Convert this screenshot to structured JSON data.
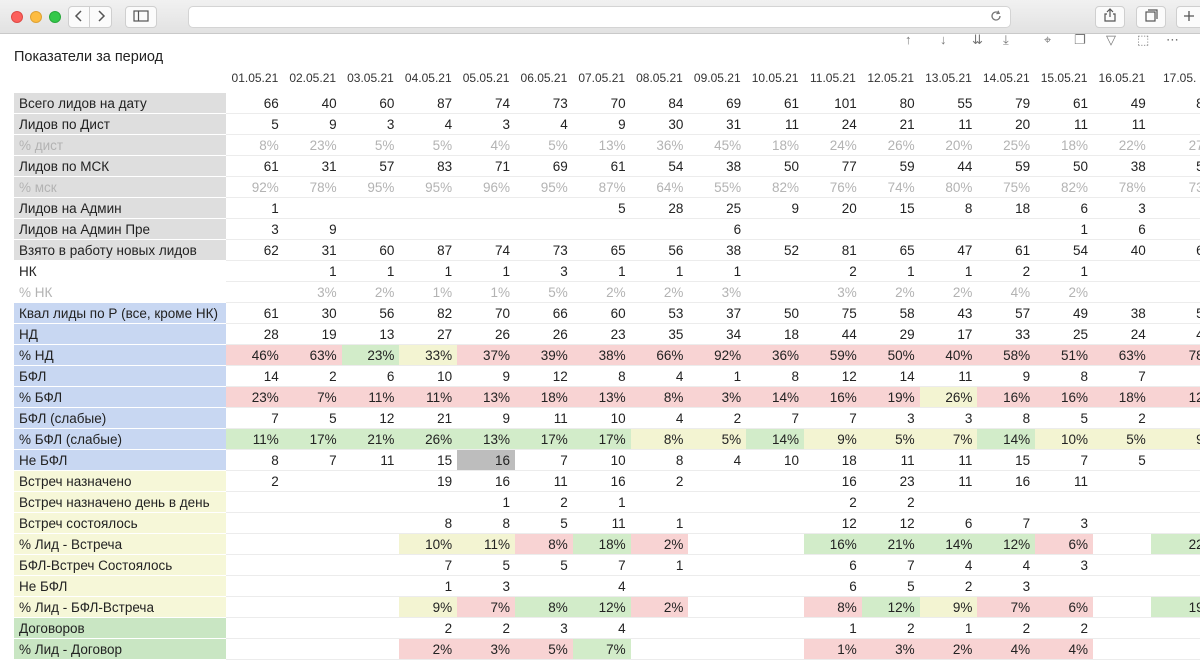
{
  "colors": {
    "label_gray": "#dedede",
    "label_blue": "#c8d7f2",
    "label_yellow": "#f6f7d8",
    "label_green": "#c9e6c3",
    "cell_red": "#f8d3d3",
    "cell_green": "#d2ecc9",
    "cell_yellow": "#f3f4d2",
    "cell_selected": "#bdbdbd"
  },
  "browser": {
    "back_icon": "chevron-left-icon",
    "forward_icon": "chevron-right-icon",
    "sidebar_icon": "sidebar-icon",
    "reload_icon": "reload-icon",
    "share_icon": "share-icon",
    "tabs_icon": "tabs-icon",
    "new_tab_icon": "plus-icon"
  },
  "report": {
    "title": "Показатели за период",
    "visual_tools": [
      "arrow-up-icon",
      "arrow-down-icon",
      "double-arrow-down-icon",
      "expand-icon",
      "pin-icon",
      "copy-icon",
      "filter-icon",
      "export-icon",
      "more-icon"
    ],
    "dates": [
      "01.05.21",
      "02.05.21",
      "03.05.21",
      "04.05.21",
      "05.05.21",
      "06.05.21",
      "07.05.21",
      "08.05.21",
      "09.05.21",
      "10.05.21",
      "11.05.21",
      "12.05.21",
      "13.05.21",
      "14.05.21",
      "15.05.21",
      "16.05.21",
      "17.05."
    ],
    "rows": [
      {
        "label": "Всего лидов на дату",
        "lc": "g",
        "values": [
          "66",
          "40",
          "60",
          "87",
          "74",
          "73",
          "70",
          "84",
          "69",
          "61",
          "101",
          "80",
          "55",
          "79",
          "61",
          "49",
          "8"
        ]
      },
      {
        "label": "Лидов по Дист",
        "lc": "g",
        "values": [
          "5",
          "9",
          "3",
          "4",
          "3",
          "4",
          "9",
          "30",
          "31",
          "11",
          "24",
          "21",
          "11",
          "20",
          "11",
          "11",
          ""
        ]
      },
      {
        "label": "% дист",
        "lc": "g",
        "light": true,
        "values": [
          "8%",
          "23%",
          "5%",
          "5%",
          "4%",
          "5%",
          "13%",
          "36%",
          "45%",
          "18%",
          "24%",
          "26%",
          "20%",
          "25%",
          "18%",
          "22%",
          "27"
        ]
      },
      {
        "label": "Лидов по МСК",
        "lc": "g",
        "values": [
          "61",
          "31",
          "57",
          "83",
          "71",
          "69",
          "61",
          "54",
          "38",
          "50",
          "77",
          "59",
          "44",
          "59",
          "50",
          "38",
          "5"
        ]
      },
      {
        "label": "% мск",
        "lc": "g",
        "light": true,
        "values": [
          "92%",
          "78%",
          "95%",
          "95%",
          "96%",
          "95%",
          "87%",
          "64%",
          "55%",
          "82%",
          "76%",
          "74%",
          "80%",
          "75%",
          "82%",
          "78%",
          "73"
        ]
      },
      {
        "label": "Лидов на Админ",
        "lc": "g",
        "values": [
          "1",
          "",
          "",
          "",
          "",
          "",
          "5",
          "28",
          "25",
          "9",
          "20",
          "15",
          "8",
          "18",
          "6",
          "3",
          ""
        ]
      },
      {
        "label": "Лидов на Админ Пре",
        "lc": "g",
        "values": [
          "3",
          "9",
          "",
          "",
          "",
          "",
          "",
          "",
          "6",
          "",
          "",
          "",
          "",
          "",
          "1",
          "6",
          ""
        ]
      },
      {
        "label": "Взято в работу новых лидов",
        "lc": "g",
        "values": [
          "62",
          "31",
          "60",
          "87",
          "74",
          "73",
          "65",
          "56",
          "38",
          "52",
          "81",
          "65",
          "47",
          "61",
          "54",
          "40",
          "6"
        ]
      },
      {
        "label": "НК",
        "lc": "w",
        "values": [
          "",
          "1",
          "1",
          "1",
          "1",
          "3",
          "1",
          "1",
          "1",
          "",
          "2",
          "1",
          "1",
          "2",
          "1",
          "",
          ""
        ]
      },
      {
        "label": "% НК",
        "lc": "w",
        "light": true,
        "values": [
          "",
          "3%",
          "2%",
          "1%",
          "1%",
          "5%",
          "2%",
          "2%",
          "3%",
          "",
          "3%",
          "2%",
          "2%",
          "4%",
          "2%",
          "",
          ""
        ]
      },
      {
        "label": "Квал лиды по Р (все, кроме НК)",
        "lc": "b",
        "values": [
          "61",
          "30",
          "56",
          "82",
          "70",
          "66",
          "60",
          "53",
          "37",
          "50",
          "75",
          "58",
          "43",
          "57",
          "49",
          "38",
          "5"
        ]
      },
      {
        "label": "НД",
        "lc": "b",
        "values": [
          "28",
          "19",
          "13",
          "27",
          "26",
          "26",
          "23",
          "35",
          "34",
          "18",
          "44",
          "29",
          "17",
          "33",
          "25",
          "24",
          "4"
        ]
      },
      {
        "label": "% НД",
        "lc": "b",
        "values": [
          "46%",
          "63%",
          "23%",
          "33%",
          "37%",
          "39%",
          "38%",
          "66%",
          "92%",
          "36%",
          "59%",
          "50%",
          "40%",
          "58%",
          "51%",
          "63%",
          "78"
        ],
        "bg": [
          "r",
          "r",
          "g",
          "y",
          "r",
          "r",
          "r",
          "r",
          "r",
          "r",
          "r",
          "r",
          "r",
          "r",
          "r",
          "r",
          "r"
        ]
      },
      {
        "label": "БФЛ",
        "lc": "b",
        "values": [
          "14",
          "2",
          "6",
          "10",
          "9",
          "12",
          "8",
          "4",
          "1",
          "8",
          "12",
          "14",
          "11",
          "9",
          "8",
          "7",
          ""
        ]
      },
      {
        "label": "% БФЛ",
        "lc": "b",
        "values": [
          "23%",
          "7%",
          "11%",
          "11%",
          "13%",
          "18%",
          "13%",
          "8%",
          "3%",
          "14%",
          "16%",
          "19%",
          "26%",
          "16%",
          "16%",
          "18%",
          "12"
        ],
        "bg": [
          "r",
          "r",
          "r",
          "r",
          "r",
          "r",
          "r",
          "r",
          "r",
          "r",
          "r",
          "r",
          "y",
          "r",
          "r",
          "r",
          "r"
        ]
      },
      {
        "label": "БФЛ (слабые)",
        "lc": "b",
        "values": [
          "7",
          "5",
          "12",
          "21",
          "9",
          "11",
          "10",
          "4",
          "2",
          "7",
          "7",
          "3",
          "3",
          "8",
          "5",
          "2",
          ""
        ]
      },
      {
        "label": "% БФЛ (слабые)",
        "lc": "b",
        "values": [
          "11%",
          "17%",
          "21%",
          "26%",
          "13%",
          "17%",
          "17%",
          "8%",
          "5%",
          "14%",
          "9%",
          "5%",
          "7%",
          "14%",
          "10%",
          "5%",
          "9"
        ],
        "bg": [
          "g",
          "g",
          "g",
          "g",
          "g",
          "g",
          "g",
          "y",
          "y",
          "g",
          "y",
          "y",
          "y",
          "g",
          "y",
          "y",
          "y"
        ]
      },
      {
        "label": "Не БФЛ",
        "lc": "b",
        "values": [
          "8",
          "7",
          "11",
          "15",
          "16",
          "7",
          "10",
          "8",
          "4",
          "10",
          "18",
          "11",
          "11",
          "15",
          "7",
          "5",
          ""
        ],
        "bg": [
          "",
          "",
          "",
          "",
          "s",
          "",
          "",
          "",
          "",
          "",
          "",
          "",
          "",
          "",
          "",
          "",
          ""
        ]
      },
      {
        "label": "Встреч назначено",
        "lc": "y",
        "values": [
          "2",
          "",
          "",
          "19",
          "16",
          "11",
          "16",
          "2",
          "",
          "",
          "16",
          "23",
          "11",
          "16",
          "11",
          "",
          ""
        ]
      },
      {
        "label": "Встреч назначено день в день",
        "lc": "y",
        "values": [
          "",
          "",
          "",
          "",
          "1",
          "2",
          "1",
          "",
          "",
          "",
          "2",
          "2",
          "",
          "",
          "",
          "",
          ""
        ]
      },
      {
        "label": "Встреч состоялось",
        "lc": "y",
        "values": [
          "",
          "",
          "",
          "8",
          "8",
          "5",
          "11",
          "1",
          "",
          "",
          "12",
          "12",
          "6",
          "7",
          "3",
          "",
          ""
        ]
      },
      {
        "label": "% Лид - Встреча",
        "lc": "y",
        "values": [
          "",
          "",
          "",
          "10%",
          "11%",
          "8%",
          "18%",
          "2%",
          "",
          "",
          "16%",
          "21%",
          "14%",
          "12%",
          "6%",
          "",
          "22"
        ],
        "bg": [
          "",
          "",
          "",
          "y",
          "y",
          "r",
          "g",
          "r",
          "",
          "",
          "g",
          "g",
          "g",
          "g",
          "r",
          "",
          "g"
        ]
      },
      {
        "label": "БФЛ-Встреч Состоялось",
        "lc": "y",
        "values": [
          "",
          "",
          "",
          "7",
          "5",
          "5",
          "7",
          "1",
          "",
          "",
          "6",
          "7",
          "4",
          "4",
          "3",
          "",
          ""
        ]
      },
      {
        "label": "Не БФЛ",
        "lc": "y",
        "values": [
          "",
          "",
          "",
          "1",
          "3",
          "",
          "4",
          "",
          "",
          "",
          "6",
          "5",
          "2",
          "3",
          "",
          "",
          ""
        ]
      },
      {
        "label": "% Лид - БФЛ-Встреча",
        "lc": "y",
        "values": [
          "",
          "",
          "",
          "9%",
          "7%",
          "8%",
          "12%",
          "2%",
          "",
          "",
          "8%",
          "12%",
          "9%",
          "7%",
          "6%",
          "",
          "19"
        ],
        "bg": [
          "",
          "",
          "",
          "y",
          "r",
          "g",
          "g",
          "r",
          "",
          "",
          "r",
          "g",
          "y",
          "r",
          "r",
          "",
          "g"
        ]
      },
      {
        "label": "Договоров",
        "lc": "gr",
        "values": [
          "",
          "",
          "",
          "2",
          "2",
          "3",
          "4",
          "",
          "",
          "",
          "1",
          "2",
          "1",
          "2",
          "2",
          "",
          ""
        ]
      },
      {
        "label": "% Лид - Договор",
        "lc": "gr",
        "values": [
          "",
          "",
          "",
          "2%",
          "3%",
          "5%",
          "7%",
          "",
          "",
          "",
          "1%",
          "3%",
          "2%",
          "4%",
          "4%",
          "",
          ""
        ],
        "bg": [
          "",
          "",
          "",
          "r",
          "r",
          "r",
          "g",
          "",
          "",
          "",
          "r",
          "r",
          "r",
          "r",
          "r",
          "",
          ""
        ]
      }
    ]
  }
}
